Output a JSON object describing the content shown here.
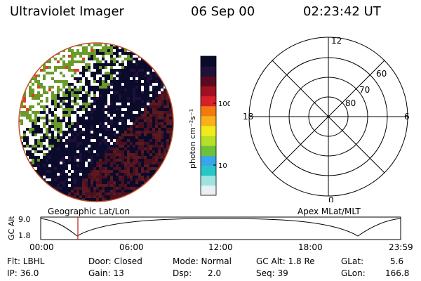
{
  "header": {
    "title": "Ultraviolet Imager",
    "date": "06 Sep 00",
    "time": "02:23:42 UT"
  },
  "colorbar": {
    "unit_label": "photon cm⁻²s⁻¹",
    "ticks": [
      "100",
      "10"
    ],
    "colors": [
      "#e8f0f4",
      "#9fe3e0",
      "#29c6c8",
      "#3aa6e8",
      "#6cc23a",
      "#b6df2a",
      "#f2ea1a",
      "#f6b21a",
      "#f27a10",
      "#d8202a",
      "#a01020",
      "#5a0a20",
      "#20103a",
      "#0a0a2a"
    ]
  },
  "polar_plot": {
    "labels": {
      "top": "12",
      "left": "18",
      "right": "6",
      "bottom": "0"
    },
    "rings": [
      "60",
      "70",
      "80"
    ]
  },
  "timeline": {
    "ylabel": "GC Alt",
    "y_ticks": [
      "9.0",
      "1.8"
    ],
    "left_label": "Geographic Lat/Lon",
    "right_label": "Apex MLat/MLT",
    "x_ticks": [
      "00:00",
      "06:00",
      "12:00",
      "18:00",
      "23:59"
    ]
  },
  "info": {
    "row1": {
      "flt": "Flt: LBHL",
      "door": "Door: Closed",
      "mode": "Mode: Normal",
      "gcalt": "GC Alt: 1.8 Re",
      "glat_label": "GLat:",
      "glat_value": "5.6"
    },
    "row2": {
      "ip": "IP: 36.0",
      "gain": "Gain: 13",
      "dsp_label": "Dsp:",
      "dsp_value": "2.0",
      "seq": "Seq: 39",
      "glon_label": "GLon:",
      "glon_value": "166.8"
    }
  }
}
